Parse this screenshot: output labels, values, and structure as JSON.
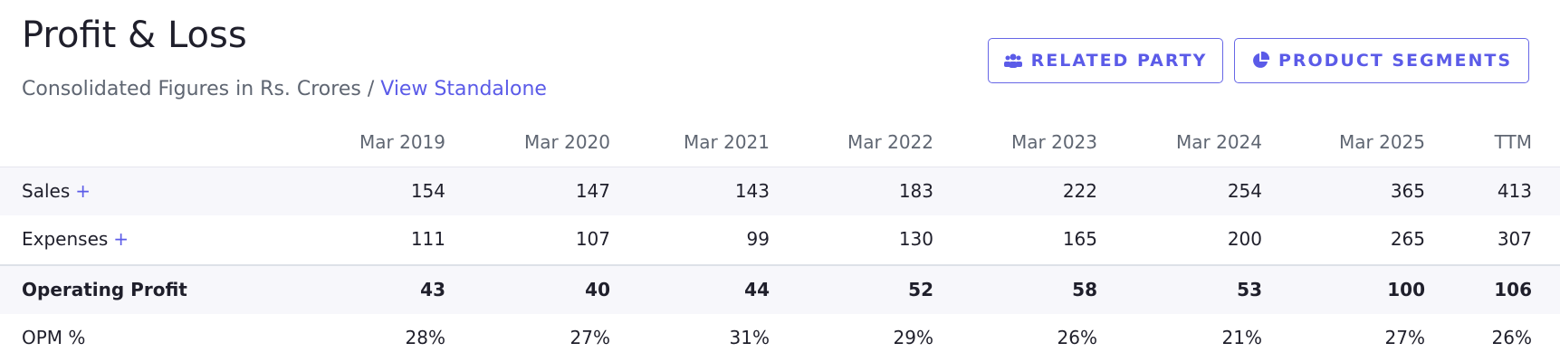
{
  "header": {
    "title": "Profit & Loss",
    "subtitle": "Consolidated Figures in Rs. Crores",
    "separator": "/",
    "link": "View Standalone"
  },
  "buttons": [
    "RELATED PARTY",
    "PRODUCT SEGMENTS"
  ],
  "table": {
    "columns": [
      "Mar 2019",
      "Mar 2020",
      "Mar 2021",
      "Mar 2022",
      "Mar 2023",
      "Mar 2024",
      "Mar 2025",
      "TTM"
    ],
    "rows": [
      {
        "label": "Sales",
        "expand": "+",
        "values": [
          154,
          147,
          143,
          183,
          222,
          254,
          365,
          413
        ]
      },
      {
        "label": "Expenses",
        "expand": "+",
        "values": [
          111,
          107,
          99,
          130,
          165,
          200,
          265,
          307
        ]
      },
      {
        "label": "Operating Profit",
        "values": [
          43,
          40,
          44,
          52,
          58,
          53,
          100,
          106
        ]
      },
      {
        "label": "OPM %",
        "values": [
          "28%",
          "27%",
          "31%",
          "29%",
          "26%",
          "21%",
          "27%",
          "26%"
        ]
      }
    ]
  }
}
